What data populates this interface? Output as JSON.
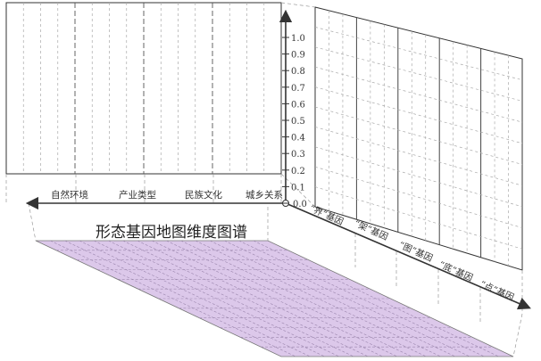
{
  "title": "形态基因地图维度图谱",
  "left_axis_labels": [
    "自然环境",
    "产业类型",
    "民族文化",
    "城乡关系"
  ],
  "vertical_axis_ticks": [
    "1.0",
    "0.9",
    "0.8",
    "0.7",
    "0.6",
    "0.5",
    "0.4",
    "0.3",
    "0.2",
    "0.1",
    "0.0"
  ],
  "diagonal_axis_labels": [
    "“界”基因",
    "“架”基因",
    "“图”基因",
    "“底”基因",
    "“点”基因"
  ],
  "colors": {
    "line": "#333333",
    "grid": "#9a9a9a",
    "floor_fill": "#dcc8ea"
  }
}
